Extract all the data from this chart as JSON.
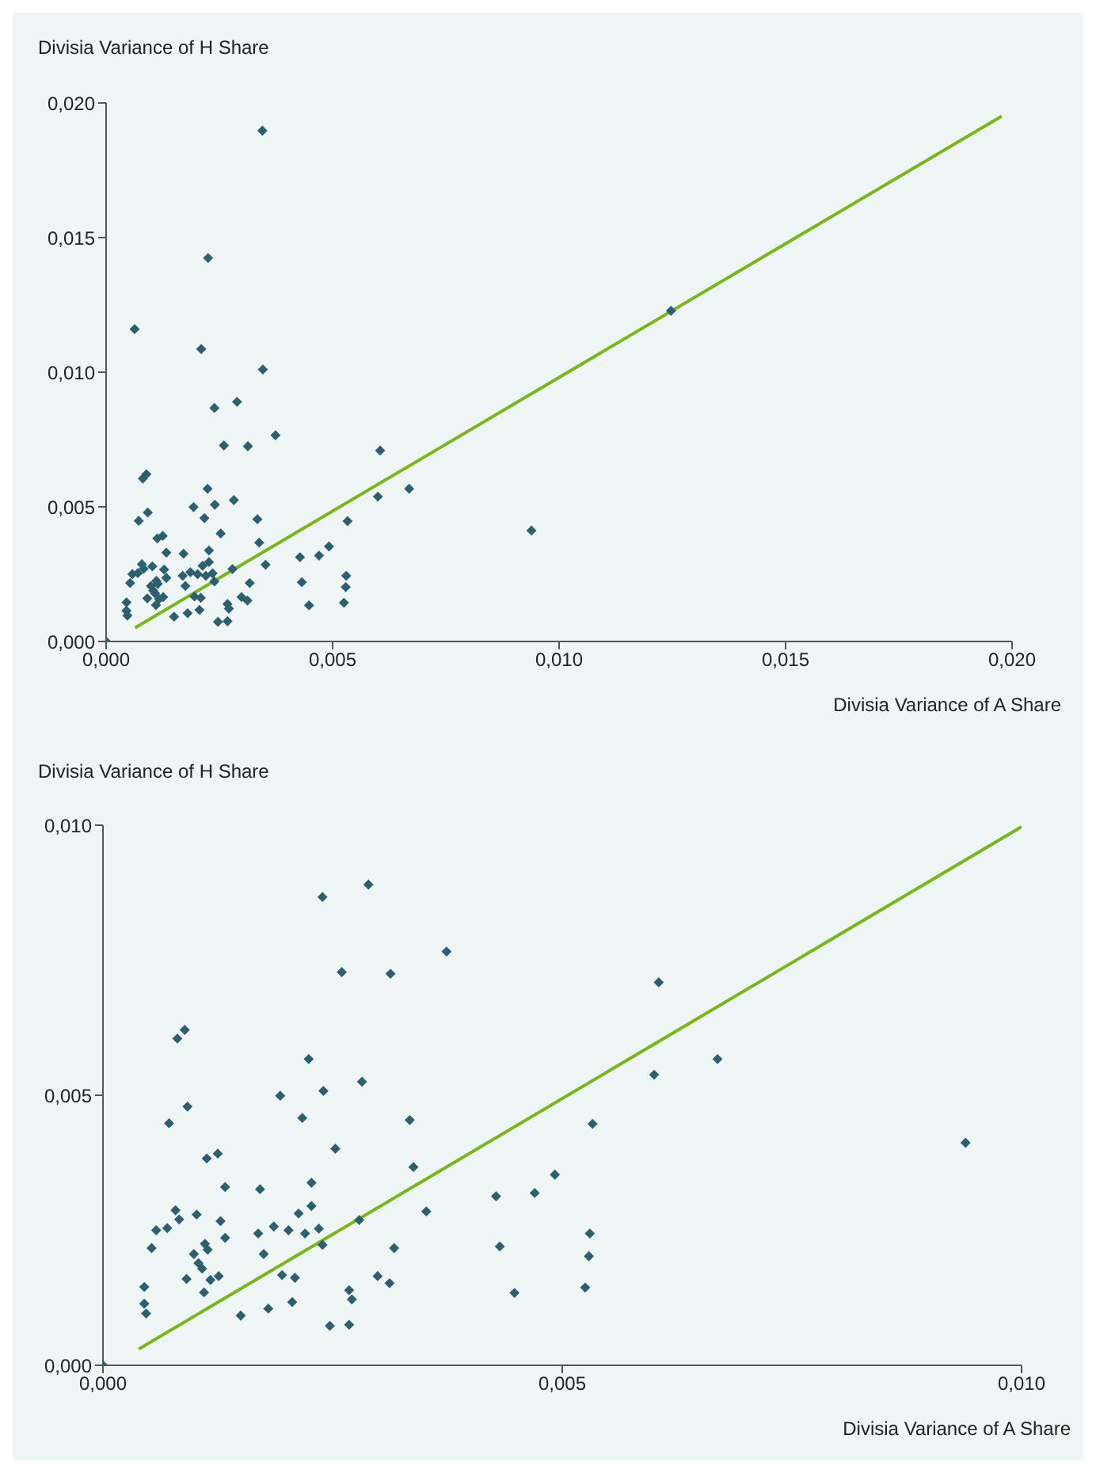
{
  "chart_data": [
    {
      "type": "scatter",
      "ylabel": "Divisia Variance of H Share",
      "xlabel": "Divisia Variance of A Share",
      "xlim": [
        0,
        0.02
      ],
      "ylim": [
        0,
        0.02
      ],
      "xticks": [
        {
          "value": 0,
          "label": "0,000"
        },
        {
          "value": 0.005,
          "label": "0,005"
        },
        {
          "value": 0.01,
          "label": "0,010"
        },
        {
          "value": 0.015,
          "label": "0,015"
        },
        {
          "value": 0.02,
          "label": "0,020"
        }
      ],
      "yticks": [
        {
          "value": 0,
          "label": "0,000"
        },
        {
          "value": 0.005,
          "label": "0,005"
        },
        {
          "value": 0.01,
          "label": "0,010"
        },
        {
          "value": 0.015,
          "label": "0,015"
        },
        {
          "value": 0.02,
          "label": "0,020"
        }
      ],
      "series": [
        {
          "type": "scatter",
          "color": "#2d5f6e",
          "marker": "diamond",
          "x": [
            0.00239,
            0.00289,
            0.00374,
            0.0026,
            0.00313,
            0.00081,
            0.00089,
            0.00224,
            0.00282,
            0.00193,
            0.0024,
            0.00092,
            0.00072,
            0.00217,
            0.00334,
            0.00253,
            0.00113,
            0.00125,
            0.00338,
            0.00133,
            0.00171,
            0.00227,
            0.00079,
            0.00102,
            0.00227,
            0.00213,
            0.00083,
            0.00128,
            0.00058,
            0.0007,
            0.00186,
            0.00202,
            0.0022,
            0.00235,
            0.00169,
            0.00279,
            0.00352,
            0.00053,
            0.00133,
            0.00111,
            0.00114,
            0.00099,
            0.00175,
            0.00239,
            0.00317,
            0.00104,
            0.00108,
            0.00091,
            0.00117,
            0.00126,
            0.00195,
            0.00209,
            0.00299,
            0.00312,
            0.00045,
            0.0011,
            0.00045,
            0.00047,
            0.0015,
            0.0018,
            0.00206,
            0.00268,
            0.00271,
            0.00247,
            0.00268,
            0.00428,
            0.0047,
            0.00492,
            0.00432,
            0.00448,
            0,
            0.00605,
            0.006,
            0.00669,
            0.00533,
            0.0053,
            0.00529,
            0.00525,
            0.00939,
            0.00345,
            0.00225,
            0.00063,
            0.0021,
            0.00346,
            0.01247
          ],
          "values": [
            0.00867,
            0.0089,
            0.00766,
            0.00728,
            0.00725,
            0.00605,
            0.00621,
            0.00567,
            0.00525,
            0.00499,
            0.00508,
            0.00479,
            0.00448,
            0.00458,
            0.00454,
            0.00401,
            0.00383,
            0.00392,
            0.00367,
            0.0033,
            0.00326,
            0.00338,
            0.00287,
            0.00279,
            0.00295,
            0.00281,
            0.0027,
            0.00267,
            0.0025,
            0.00254,
            0.00257,
            0.0025,
            0.00244,
            0.00253,
            0.00244,
            0.00269,
            0.00285,
            0.00217,
            0.00236,
            0.00225,
            0.00214,
            0.00206,
            0.00206,
            0.00223,
            0.00217,
            0.00189,
            0.00179,
            0.0016,
            0.00158,
            0.00165,
            0.00167,
            0.00162,
            0.00165,
            0.00152,
            0.00145,
            0.00135,
            0.00114,
            0.00096,
            0.00092,
            0.00105,
            0.00117,
            0.00139,
            0.00122,
            0.00073,
            0.00075,
            0.00313,
            0.00319,
            0.00353,
            0.0022,
            0.00134,
            0,
            0.00709,
            0.00538,
            0.00567,
            0.00447,
            0.00244,
            0.00202,
            0.00144,
            0.00412,
            0.01897,
            0.01424,
            0.0116,
            0.01086,
            0.0101,
            0.01228
          ]
        },
        {
          "type": "line",
          "color": "#7ab51d",
          "x": [
            0.00064,
            0.01977
          ],
          "values": [
            0.00051,
            0.01951
          ]
        }
      ]
    },
    {
      "type": "scatter",
      "ylabel": "Divisia Variance of H Share",
      "xlabel": "Divisia Variance of A Share",
      "xlim": [
        0,
        0.01
      ],
      "ylim": [
        0,
        0.01
      ],
      "xticks": [
        {
          "value": 0,
          "label": "0,000"
        },
        {
          "value": 0.005,
          "label": "0,005"
        },
        {
          "value": 0.01,
          "label": "0,010"
        }
      ],
      "yticks": [
        {
          "value": 0,
          "label": "0,000"
        },
        {
          "value": 0.005,
          "label": "0,005"
        },
        {
          "value": 0.01,
          "label": "0,010"
        }
      ],
      "series": [
        {
          "type": "scatter",
          "color": "#2d5f6e",
          "marker": "diamond",
          "x": [
            0.00239,
            0.00289,
            0.00374,
            0.0026,
            0.00313,
            0.00081,
            0.00089,
            0.00224,
            0.00282,
            0.00193,
            0.0024,
            0.00092,
            0.00072,
            0.00217,
            0.00334,
            0.00253,
            0.00113,
            0.00125,
            0.00338,
            0.00133,
            0.00171,
            0.00227,
            0.00079,
            0.00102,
            0.00227,
            0.00213,
            0.00083,
            0.00128,
            0.00058,
            0.0007,
            0.00186,
            0.00202,
            0.0022,
            0.00235,
            0.00169,
            0.00279,
            0.00352,
            0.00053,
            0.00133,
            0.00111,
            0.00114,
            0.00099,
            0.00175,
            0.00239,
            0.00317,
            0.00104,
            0.00108,
            0.00091,
            0.00117,
            0.00126,
            0.00195,
            0.00209,
            0.00299,
            0.00312,
            0.00045,
            0.0011,
            0.00045,
            0.00047,
            0.0015,
            0.0018,
            0.00206,
            0.00268,
            0.00271,
            0.00247,
            0.00268,
            0.00428,
            0.0047,
            0.00492,
            0.00432,
            0.00448,
            0,
            0.00605,
            0.006,
            0.00669,
            0.00533,
            0.0053,
            0.00529,
            0.00525,
            0.00939
          ],
          "values": [
            0.00867,
            0.0089,
            0.00766,
            0.00728,
            0.00725,
            0.00605,
            0.00621,
            0.00567,
            0.00525,
            0.00499,
            0.00508,
            0.00479,
            0.00448,
            0.00458,
            0.00454,
            0.00401,
            0.00383,
            0.00392,
            0.00367,
            0.0033,
            0.00326,
            0.00338,
            0.00287,
            0.00279,
            0.00295,
            0.00281,
            0.0027,
            0.00267,
            0.0025,
            0.00254,
            0.00257,
            0.0025,
            0.00244,
            0.00253,
            0.00244,
            0.00269,
            0.00285,
            0.00217,
            0.00236,
            0.00225,
            0.00214,
            0.00206,
            0.00206,
            0.00223,
            0.00217,
            0.00189,
            0.00179,
            0.0016,
            0.00158,
            0.00165,
            0.00167,
            0.00162,
            0.00165,
            0.00152,
            0.00145,
            0.00135,
            0.00114,
            0.00096,
            0.00092,
            0.00105,
            0.00117,
            0.00139,
            0.00122,
            0.00073,
            0.00075,
            0.00313,
            0.00319,
            0.00353,
            0.0022,
            0.00134,
            0,
            0.00709,
            0.00538,
            0.00567,
            0.00447,
            0.00244,
            0.00202,
            0.00144,
            0.00412
          ]
        },
        {
          "type": "line",
          "color": "#7ab51d",
          "x": [
            0.00039,
            0.01
          ],
          "values": [
            0.0003,
            0.00997
          ]
        }
      ]
    }
  ]
}
